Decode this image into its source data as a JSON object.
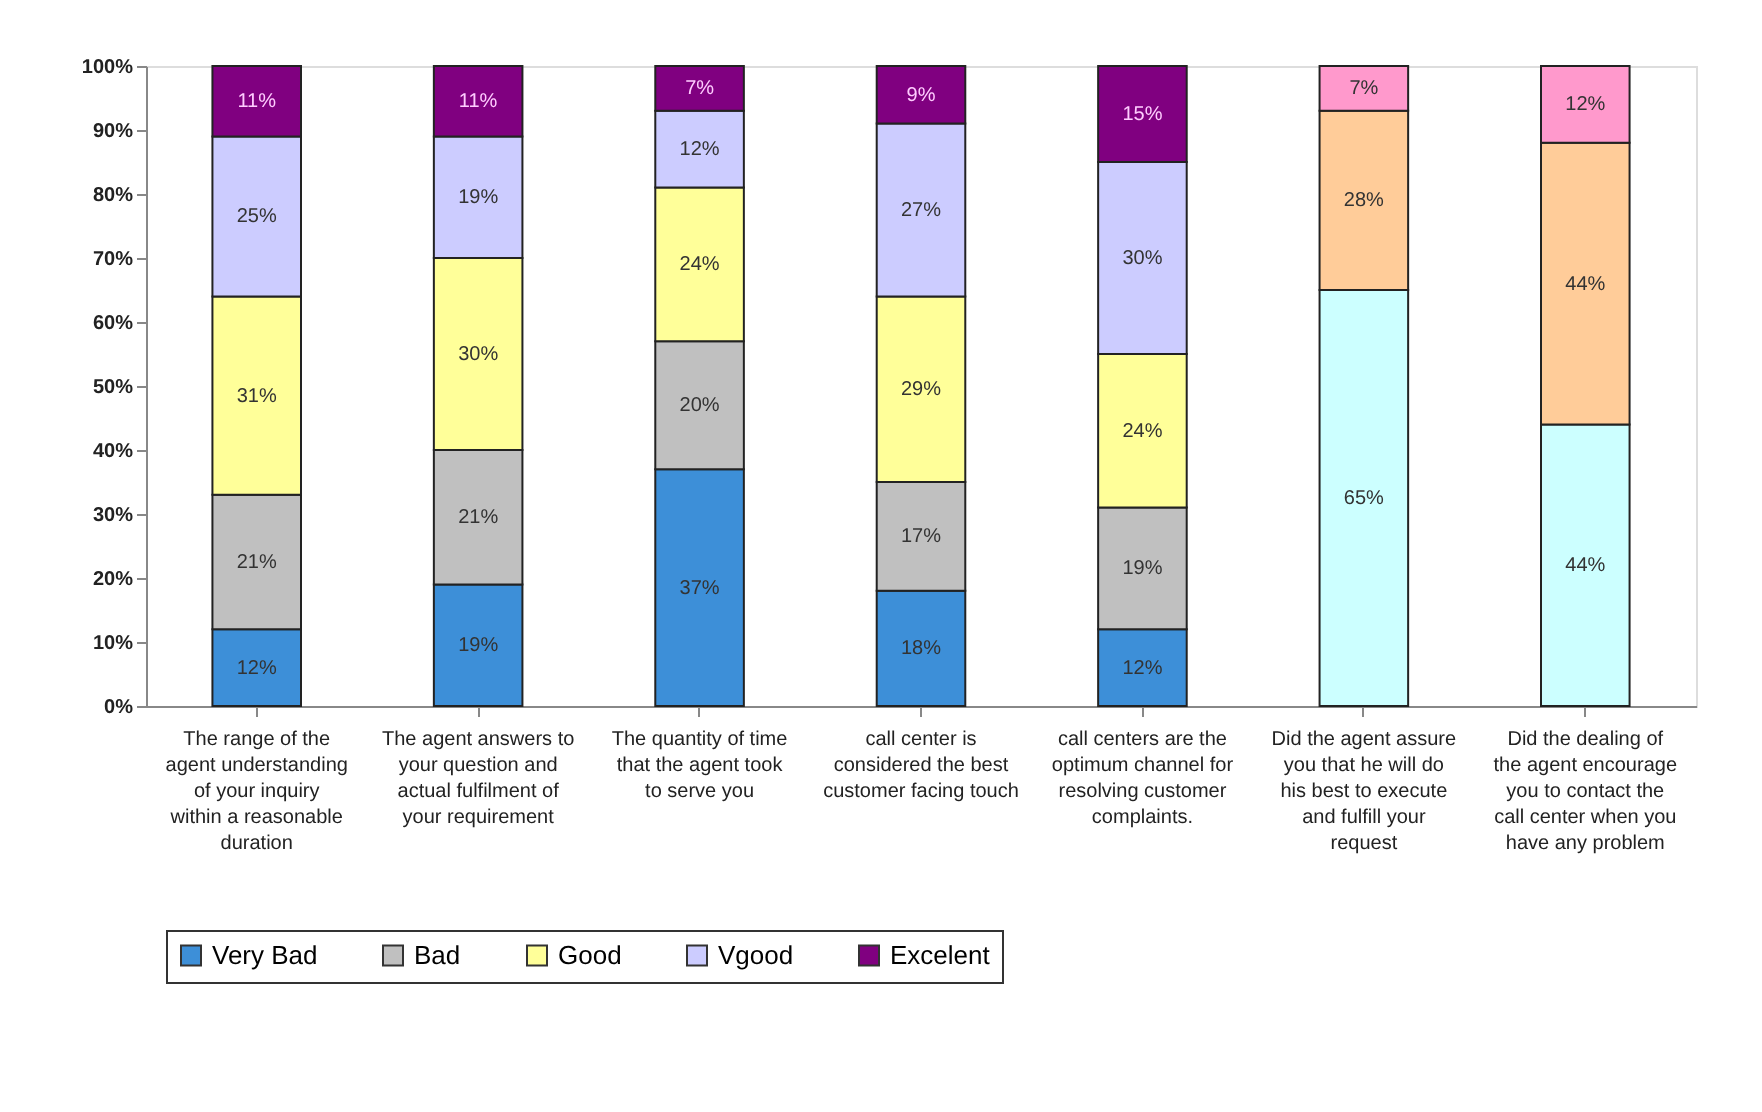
{
  "chart_data": {
    "type": "bar",
    "stacked": true,
    "categories": [
      "The range of the agent understanding of your inquiry within a reasonable duration",
      "The agent answers to your question and actual fulfilment of your requirement",
      "The quantity of time that the agent took to serve you",
      "call center is considered the best customer facing touch",
      "call centers are the optimum channel for resolving customer complaints.",
      "Did the agent assure you that he will do his best to execute and fulfill your request",
      "Did the dealing of the agent encourage you to contact the call center when you have any problem"
    ],
    "series": [
      {
        "name": "Very Bad",
        "color": "#3d8fd8",
        "values": [
          12,
          19,
          37,
          18,
          12,
          null,
          null
        ],
        "value_labels": [
          "12%",
          "19%",
          "37%",
          "18%",
          "12%",
          null,
          null
        ]
      },
      {
        "name": "Bad",
        "color": "#c0c0c0",
        "values": [
          21,
          21,
          20,
          17,
          19,
          null,
          null
        ],
        "value_labels": [
          "21%",
          "21%",
          "20%",
          "17%",
          "19%",
          null,
          null
        ]
      },
      {
        "name": "Good",
        "color": "#ffff99",
        "values": [
          31,
          30,
          24,
          29,
          24,
          null,
          null
        ],
        "value_labels": [
          "31%",
          "30%",
          "24%",
          "29%",
          "24%",
          null,
          null
        ]
      },
      {
        "name": "Vgood",
        "color": "#ccccff",
        "values": [
          25,
          19,
          12,
          27,
          30,
          null,
          null
        ],
        "value_labels": [
          "25%",
          "19%",
          "12%",
          "27%",
          "30%",
          null,
          null
        ]
      },
      {
        "name": "Excelent",
        "color": "#800080",
        "values": [
          11,
          11,
          7,
          9,
          15,
          null,
          null
        ],
        "value_labels": [
          "11%",
          "11%",
          "7%",
          "9%",
          "15%",
          null,
          null
        ]
      },
      {
        "color": "#ccffff",
        "values": [
          null,
          null,
          null,
          null,
          null,
          65,
          44
        ],
        "value_labels": [
          null,
          null,
          null,
          null,
          null,
          "65%",
          "44%"
        ]
      },
      {
        "color": "#ffcc99",
        "values": [
          null,
          null,
          null,
          null,
          null,
          28,
          44
        ],
        "value_labels": [
          null,
          null,
          null,
          null,
          null,
          "28%",
          "44%"
        ]
      },
      {
        "color": "#ff99cc",
        "values": [
          null,
          null,
          null,
          null,
          null,
          7,
          12
        ],
        "value_labels": [
          null,
          null,
          null,
          null,
          null,
          "7%",
          "12%"
        ]
      }
    ],
    "ylim": [
      0,
      100
    ],
    "yticks": [
      {
        "value": 0,
        "label": "0%"
      },
      {
        "value": 10,
        "label": "10%"
      },
      {
        "value": 20,
        "label": "20%"
      },
      {
        "value": 30,
        "label": "30%"
      },
      {
        "value": 40,
        "label": "40%"
      },
      {
        "value": 50,
        "label": "50%"
      },
      {
        "value": 60,
        "label": "60%"
      },
      {
        "value": 70,
        "label": "70%"
      },
      {
        "value": 80,
        "label": "80%"
      },
      {
        "value": 90,
        "label": "90%"
      },
      {
        "value": 100,
        "label": "100%"
      }
    ],
    "grid": false,
    "legend": "bottom left"
  }
}
